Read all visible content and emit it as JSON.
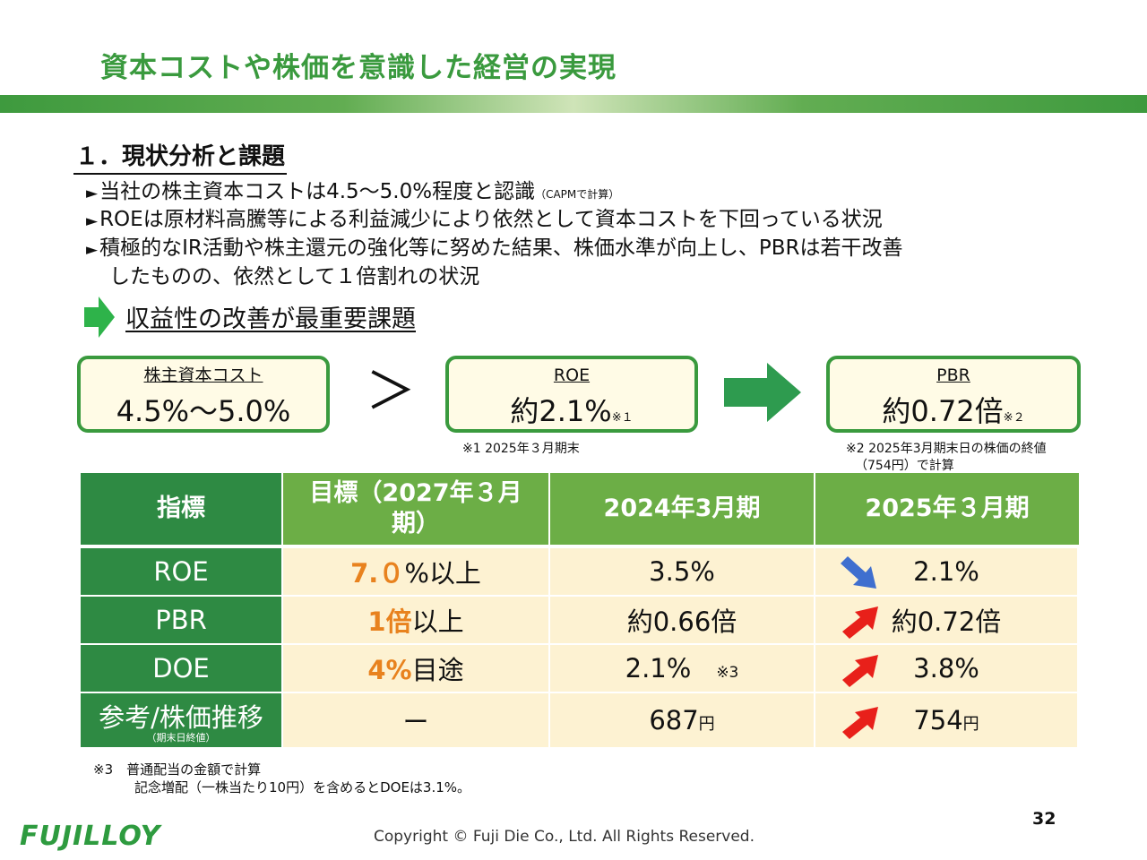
{
  "title": "資本コストや株価を意識した経営の実現",
  "section_heading": "１．現状分析と課題",
  "bullets": {
    "b1_text": "当社の株主資本コストは4.5～5.0%程度と認識",
    "b1_note": "（CAPMで計算）",
    "b2_text": "ROEは原材料高騰等による利益減少により依然として資本コストを下回っている状況",
    "b3_text": "積極的なIR活動や株主還元の強化等に努めた結果、株価水準が向上し、PBRは若干改善",
    "b3_cont": "したものの、依然として１倍割れの状況",
    "marker": "►"
  },
  "conclusion": "収益性の改善が最重要課題",
  "kpi_boxes": {
    "cost_label": "株主資本コスト",
    "cost_value": "4.5%～5.0%",
    "comparator": "＞",
    "roe_label": "ROE",
    "roe_value": "約2.1%",
    "roe_note": "※１",
    "pbr_label": "PBR",
    "pbr_value": "約0.72倍",
    "pbr_note": "※２",
    "note1": "※1 2025年３月期末",
    "note2_line1": "※2 2025年3月期末日の株価の終値",
    "note2_line2": "（754円）で計算"
  },
  "table": {
    "headers": {
      "indicator": "指標",
      "target_line1": "目標（2027年３月",
      "target_line2": "期）",
      "fy2024": "2024年3月期",
      "fy2025": "2025年３月期"
    },
    "rows": {
      "roe": {
        "name": "ROE",
        "target_hl": "7.０",
        "target_rest": "%以上",
        "fy2024": "3.5%",
        "fy2025": "2.1%",
        "trend": "down"
      },
      "pbr": {
        "name": "PBR",
        "target_hl": "1倍",
        "target_rest": "以上",
        "fy2024": "約0.66倍",
        "fy2025": "約0.72倍",
        "trend": "up"
      },
      "doe": {
        "name": "DOE",
        "target_hl": "4%",
        "target_rest": "目途",
        "fy2024": "2.1%",
        "fy2024_note": "※3",
        "fy2025": "3.8%",
        "trend": "up"
      },
      "price": {
        "name": "参考/株価推移",
        "name_sub": "（期末日終値）",
        "target": "ー",
        "fy2024": "687",
        "fy2025": "754",
        "unit": "円",
        "trend": "up"
      }
    }
  },
  "footnote3_line1": "※3　普通配当の金額で計算",
  "footnote3_line2": "記念増配（一株当たり10円）を含めるとDOEは3.1%。",
  "page_number": "32",
  "logo": "FUJILLOY",
  "copyright": "Copyright © Fuji Die Co., Ltd. All Rights Reserved.",
  "colors": {
    "green_dark": "#2e8a43",
    "green_light": "#6cae46",
    "cell_bg": "#fdf2d2",
    "orange": "#e8821e",
    "arrow_up": "#e8201a",
    "arrow_down": "#3f6fcf"
  }
}
